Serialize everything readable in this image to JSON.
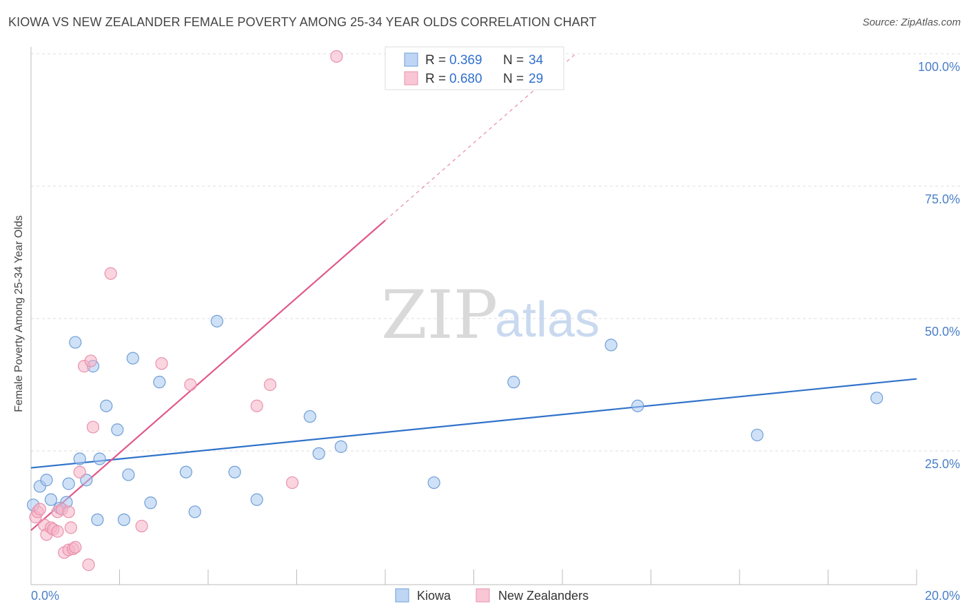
{
  "title": "KIOWA VS NEW ZEALANDER FEMALE POVERTY AMONG 25-34 YEAR OLDS CORRELATION CHART",
  "source": "Source: ZipAtlas.com",
  "watermark": {
    "zip": "ZIP",
    "atlas": "atlas"
  },
  "chart_data": {
    "type": "scatter",
    "title": "KIOWA VS NEW ZEALANDER FEMALE POVERTY AMONG 25-34 YEAR OLDS CORRELATION CHART",
    "xlabel": "",
    "ylabel": "Female Poverty Among 25-34 Year Olds",
    "xlim": [
      0,
      20
    ],
    "ylim": [
      0,
      100
    ],
    "y_ticks": [
      {
        "value": 100,
        "label": "100.0%"
      },
      {
        "value": 75,
        "label": "75.0%"
      },
      {
        "value": 50,
        "label": "50.0%"
      },
      {
        "value": 25,
        "label": "25.0%"
      }
    ],
    "x_ticks": [
      {
        "value": 0,
        "label": "0.0%"
      },
      {
        "value": 20,
        "label": "20.0%"
      }
    ],
    "grid": true,
    "legend_stats": [
      {
        "r_label": "R = ",
        "r_value": "0.369",
        "n_label": "N = ",
        "n_value": "34",
        "color": "#a8c8f0"
      },
      {
        "r_label": "R = ",
        "r_value": "0.680",
        "n_label": "N = ",
        "n_value": "29",
        "color": "#f5b3c7"
      }
    ],
    "series": [
      {
        "name": "Kiowa",
        "color": "#a8c8f0",
        "stroke": "#6f9ed6",
        "trend_color": "#2f72c9",
        "trend": {
          "x0": 0,
          "y0": 21.8,
          "x1": 20,
          "y1": 38.6,
          "solid_to": 20
        },
        "points": [
          [
            0.05,
            14.8
          ],
          [
            0.2,
            18.3
          ],
          [
            0.35,
            19.5
          ],
          [
            0.45,
            15.8
          ],
          [
            0.65,
            14.2
          ],
          [
            0.8,
            15.3
          ],
          [
            0.85,
            18.8
          ],
          [
            1.0,
            45.5
          ],
          [
            1.1,
            23.5
          ],
          [
            1.25,
            19.5
          ],
          [
            1.4,
            41.0
          ],
          [
            1.5,
            12.0
          ],
          [
            1.55,
            23.5
          ],
          [
            1.7,
            33.5
          ],
          [
            1.95,
            29.0
          ],
          [
            2.1,
            12.0
          ],
          [
            2.2,
            20.5
          ],
          [
            2.3,
            42.5
          ],
          [
            2.7,
            15.2
          ],
          [
            2.9,
            38.0
          ],
          [
            3.5,
            21.0
          ],
          [
            3.7,
            13.5
          ],
          [
            4.2,
            49.5
          ],
          [
            4.6,
            21.0
          ],
          [
            5.1,
            15.8
          ],
          [
            6.3,
            31.5
          ],
          [
            6.5,
            24.5
          ],
          [
            7.0,
            25.8
          ],
          [
            9.1,
            19.0
          ],
          [
            10.9,
            38.0
          ],
          [
            13.1,
            45.0
          ],
          [
            13.7,
            33.5
          ],
          [
            16.4,
            28.0
          ],
          [
            19.1,
            35.0
          ]
        ]
      },
      {
        "name": "New Zealanders",
        "color": "#f5b3c7",
        "stroke": "#e891ab",
        "trend_color": "#e0578a",
        "trend": {
          "x0": 0,
          "y0": 10.0,
          "x1": 12.3,
          "y1": 100.0,
          "solid_to": 8.0
        },
        "points": [
          [
            0.1,
            12.5
          ],
          [
            0.15,
            13.5
          ],
          [
            0.2,
            14.0
          ],
          [
            0.3,
            11.0
          ],
          [
            0.35,
            9.2
          ],
          [
            0.45,
            10.5
          ],
          [
            0.5,
            10.2
          ],
          [
            0.6,
            13.5
          ],
          [
            0.6,
            9.8
          ],
          [
            0.7,
            14.0
          ],
          [
            0.75,
            5.8
          ],
          [
            0.85,
            6.3
          ],
          [
            0.85,
            13.5
          ],
          [
            0.9,
            10.5
          ],
          [
            0.95,
            6.5
          ],
          [
            1.0,
            6.8
          ],
          [
            1.1,
            21.0
          ],
          [
            1.2,
            41.0
          ],
          [
            1.3,
            3.5
          ],
          [
            1.35,
            42.0
          ],
          [
            1.4,
            29.5
          ],
          [
            1.8,
            58.5
          ],
          [
            2.5,
            10.8
          ],
          [
            2.95,
            41.5
          ],
          [
            3.6,
            37.5
          ],
          [
            5.1,
            33.5
          ],
          [
            5.4,
            37.5
          ],
          [
            5.9,
            19.0
          ],
          [
            6.9,
            99.5
          ]
        ]
      }
    ]
  }
}
